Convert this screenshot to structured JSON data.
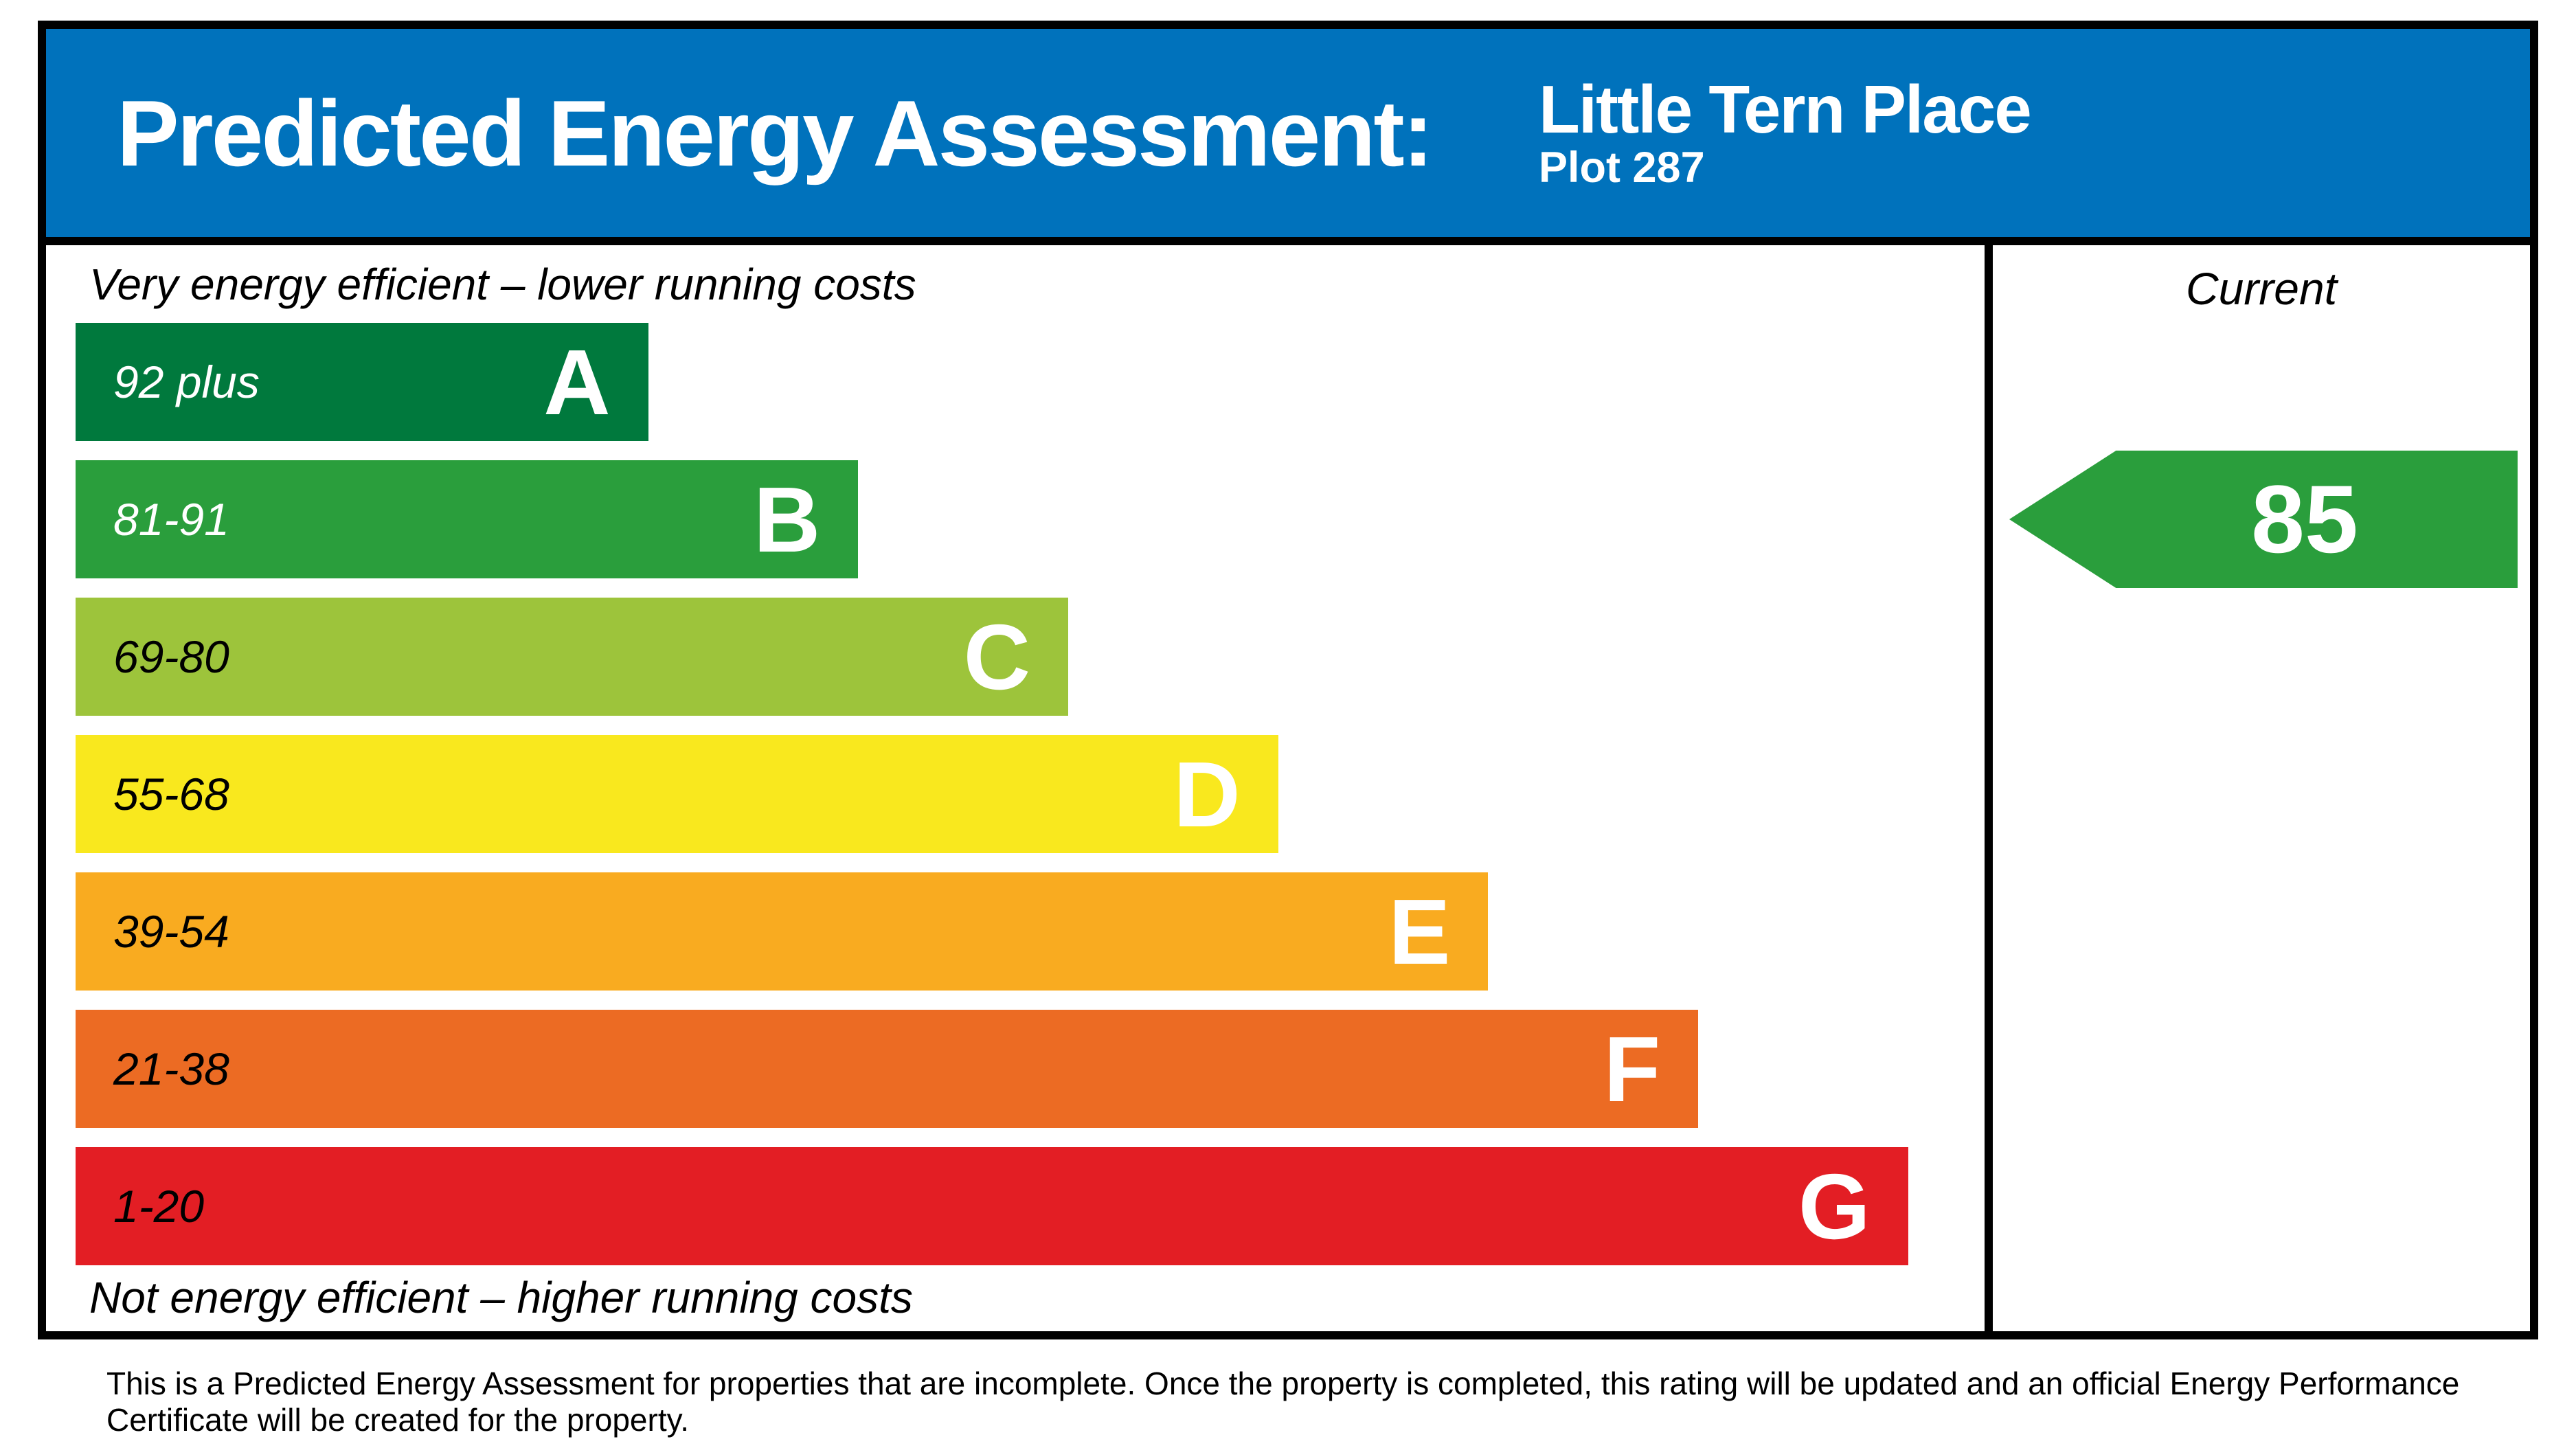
{
  "header": {
    "title": "Predicted Energy Assessment:",
    "property_name": "Little Tern Place",
    "plot": "Plot 287",
    "bg_color": "#0072bc"
  },
  "captions": {
    "top": "Very energy efficient – lower running costs",
    "bottom": "Not energy efficient – higher running costs"
  },
  "current": {
    "label": "Current"
  },
  "chart_data": {
    "type": "bar",
    "title": "Predicted Energy Assessment",
    "bands": [
      {
        "letter": "A",
        "range_label": "92 plus",
        "range_min": 92,
        "width_pct": 30,
        "width_css": "30%",
        "color": "#00793d",
        "range_color": "#ffffff"
      },
      {
        "letter": "B",
        "range_label": "81-91",
        "range_min": 81,
        "range_max": 91,
        "width_pct": 41,
        "width_css": "41%",
        "color": "#2a9e3c",
        "range_color": "#ffffff"
      },
      {
        "letter": "C",
        "range_label": "69-80",
        "range_min": 69,
        "range_max": 80,
        "width_pct": 52,
        "width_css": "52%",
        "color": "#9dc43b",
        "range_color": "#000000"
      },
      {
        "letter": "D",
        "range_label": "55-68",
        "range_min": 55,
        "range_max": 68,
        "width_pct": 63,
        "width_css": "63%",
        "color": "#f9e81e",
        "range_color": "#000000"
      },
      {
        "letter": "E",
        "range_label": "39-54",
        "range_min": 39,
        "range_max": 54,
        "width_pct": 74,
        "width_css": "74%",
        "color": "#f9ab20",
        "range_color": "#000000"
      },
      {
        "letter": "F",
        "range_label": "21-38",
        "range_min": 21,
        "range_max": 38,
        "width_pct": 85,
        "width_css": "85%",
        "color": "#ec6b23",
        "range_color": "#000000"
      },
      {
        "letter": "G",
        "range_label": "1-20",
        "range_min": 1,
        "range_max": 20,
        "width_pct": 96,
        "width_css": "96%",
        "color": "#e31e24",
        "range_color": "#000000"
      }
    ],
    "current_rating": 85,
    "current_band": "B",
    "arrow_color": "#2a9e3c",
    "legend_position": "right-column",
    "xlabel": "",
    "ylabel": ""
  },
  "footer": {
    "text": "This is a Predicted Energy Assessment for properties that are incomplete. Once the property is completed, this rating will be updated and an official Energy Performance Certificate will be created for the property."
  }
}
